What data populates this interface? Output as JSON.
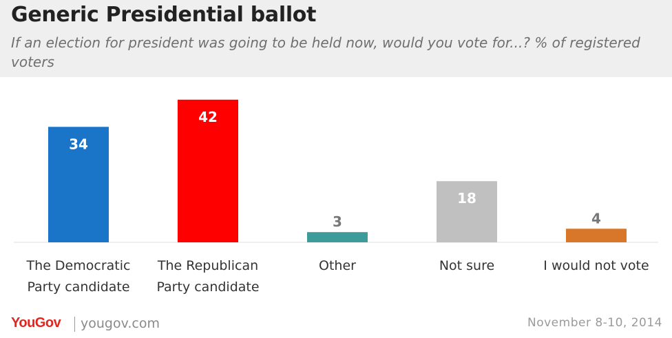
{
  "header": {
    "title": "Generic Presidential ballot",
    "subtitle": "If an election for president was going to be held now, would you vote for...? % of registered voters"
  },
  "footer": {
    "logo": "YouGov",
    "site": "yougov.com",
    "date": "November 8-10, 2014"
  },
  "chart_data": {
    "type": "bar",
    "categories": [
      [
        "The Democratic",
        "Party candidate"
      ],
      [
        "The Republican",
        "Party candidate"
      ],
      [
        "Other"
      ],
      [
        "Not sure"
      ],
      [
        "I would not vote"
      ]
    ],
    "values": [
      34,
      42,
      3,
      18,
      4
    ],
    "colors": [
      "#1a75c9",
      "#ff0000",
      "#3d9c9a",
      "#c0c0c0",
      "#d8772a"
    ],
    "value_label_colors": [
      "#ffffff",
      "#ffffff",
      "#777777",
      "#ffffff",
      "#777777"
    ],
    "ylim": [
      0,
      45
    ],
    "grid": false,
    "legend": "none"
  }
}
